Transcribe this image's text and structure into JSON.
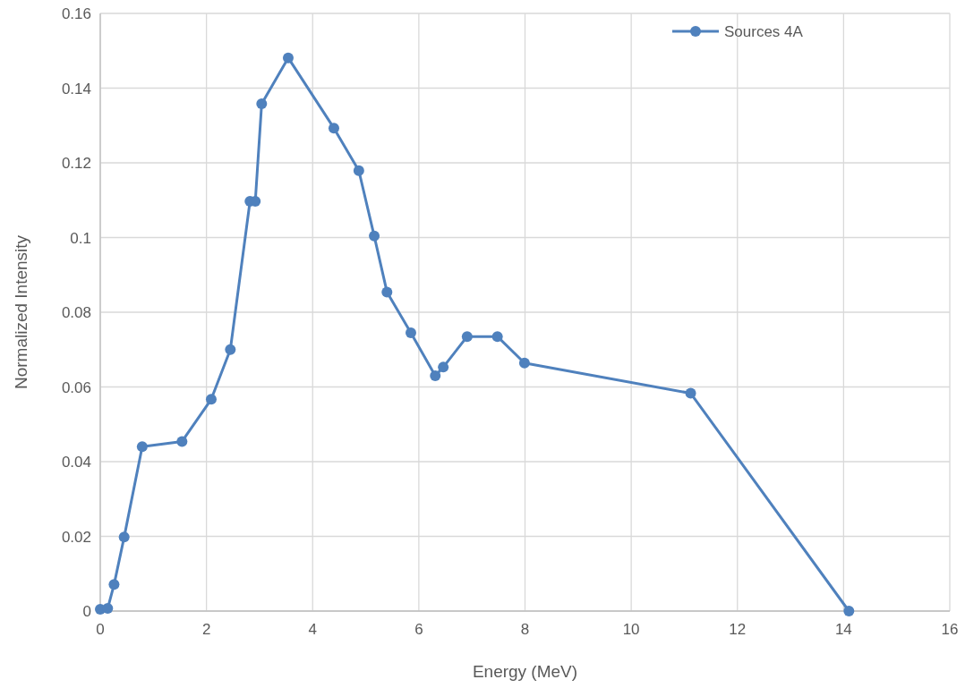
{
  "chart_data": {
    "type": "line",
    "xlabel": "Energy (MeV)",
    "ylabel": "Normalized Intensity",
    "xlim": [
      0,
      16
    ],
    "xticks": [
      0,
      2,
      4,
      6,
      8,
      10,
      12,
      14,
      16
    ],
    "ylim": [
      0,
      0.16
    ],
    "yticks": [
      0,
      0.02,
      0.04,
      0.06,
      0.08,
      0.1,
      0.12,
      0.14,
      0.16
    ],
    "grid": true,
    "legend": "top right",
    "marker": "circle",
    "line_style": "solid",
    "series": [
      {
        "name": "Sources 4A",
        "color": "#4f81bd",
        "x": [
          0,
          0.14,
          0.26,
          0.45,
          0.79,
          1.54,
          2.09,
          2.45,
          2.82,
          2.92,
          3.04,
          3.54,
          4.4,
          4.87,
          5.16,
          5.4,
          5.85,
          6.31,
          6.46,
          6.91,
          7.48,
          7.99,
          11.12,
          14.1
        ],
        "values": [
          0.0005,
          0.0007,
          0.0071,
          0.0198,
          0.044,
          0.0454,
          0.0567,
          0.07,
          0.1097,
          0.1097,
          0.1358,
          0.1481,
          0.1293,
          0.1179,
          0.1004,
          0.0854,
          0.0745,
          0.063,
          0.0653,
          0.0735,
          0.0735,
          0.0664,
          0.0583,
          0
        ]
      }
    ]
  }
}
